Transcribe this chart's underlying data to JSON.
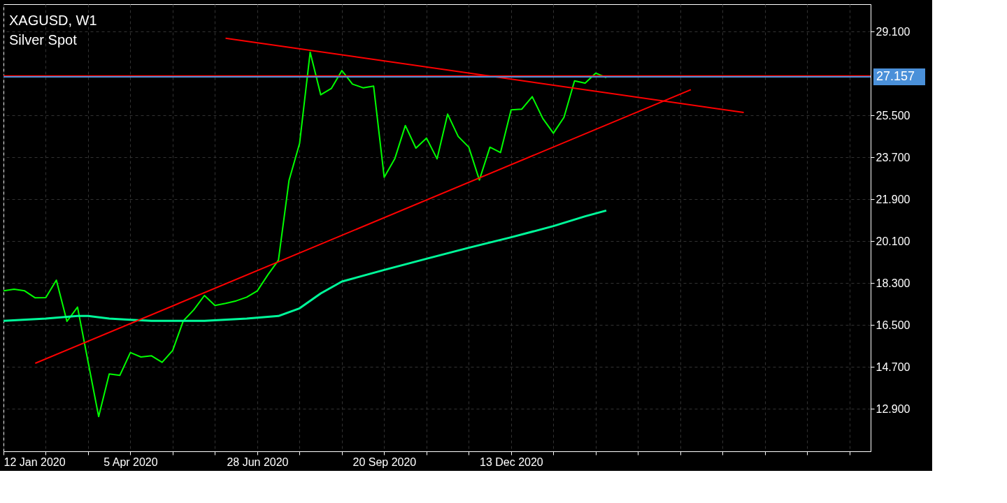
{
  "chart_data": {
    "type": "line",
    "title": "XAGUSD, W1",
    "subtitle": "Silver Spot",
    "series": [
      {
        "color": "#00ff00",
        "x": [
          "2020-01-12",
          "2020-01-19",
          "2020-01-26",
          "2020-02-02",
          "2020-02-09",
          "2020-02-16",
          "2020-02-23",
          "2020-03-01",
          "2020-03-08",
          "2020-03-15",
          "2020-03-22",
          "2020-03-29",
          "2020-04-05",
          "2020-04-12",
          "2020-04-19",
          "2020-04-26",
          "2020-05-03",
          "2020-05-10",
          "2020-05-17",
          "2020-05-24",
          "2020-05-31",
          "2020-06-07",
          "2020-06-14",
          "2020-06-21",
          "2020-06-28",
          "2020-07-05",
          "2020-07-12",
          "2020-07-19",
          "2020-07-26",
          "2020-08-02",
          "2020-08-09",
          "2020-08-16",
          "2020-08-23",
          "2020-08-30",
          "2020-09-06",
          "2020-09-13",
          "2020-09-20",
          "2020-09-27",
          "2020-10-04",
          "2020-10-11",
          "2020-10-18",
          "2020-10-25",
          "2020-11-01",
          "2020-11-08",
          "2020-11-15",
          "2020-11-22",
          "2020-11-29",
          "2020-12-06",
          "2020-12-13",
          "2020-12-20",
          "2020-12-27",
          "2021-01-03",
          "2021-01-10",
          "2021-01-17",
          "2021-01-24",
          "2021-01-31",
          "2021-02-07",
          "2021-02-14"
        ],
        "values": [
          17.97,
          18.04,
          17.97,
          17.67,
          17.68,
          18.43,
          16.66,
          17.27,
          14.92,
          12.57,
          14.4,
          14.34,
          15.32,
          15.13,
          15.18,
          14.9,
          15.41,
          16.68,
          17.16,
          17.77,
          17.34,
          17.43,
          17.54,
          17.7,
          17.97,
          18.66,
          19.29,
          22.71,
          24.3,
          28.22,
          26.39,
          26.66,
          27.43,
          26.85,
          26.69,
          26.76,
          22.85,
          23.64,
          25.07,
          24.1,
          24.53,
          23.64,
          25.56,
          24.6,
          24.14,
          22.73,
          24.14,
          23.91,
          25.74,
          25.77,
          26.31,
          25.37,
          24.74,
          25.42,
          26.99,
          26.89,
          27.32,
          27.13
        ]
      },
      {
        "color": "#00fa9a",
        "x": [
          "2020-01-12",
          "2020-02-09",
          "2020-03-01",
          "2020-03-08",
          "2020-03-22",
          "2020-04-05",
          "2020-04-19",
          "2020-05-24",
          "2020-06-21",
          "2020-07-12",
          "2020-07-26",
          "2020-08-09",
          "2020-08-23",
          "2020-09-20",
          "2020-10-18",
          "2020-11-15",
          "2020-12-13",
          "2021-01-10",
          "2021-01-31",
          "2021-02-14"
        ],
        "values": [
          16.68,
          16.78,
          16.89,
          16.89,
          16.78,
          16.73,
          16.68,
          16.68,
          16.78,
          16.89,
          17.22,
          17.86,
          18.37,
          18.87,
          19.35,
          19.82,
          20.27,
          20.75,
          21.17,
          21.42
        ]
      },
      {
        "color": "#ff0000",
        "x": [
          "2020-02-02",
          "2021-04-11"
        ],
        "values": [
          14.86,
          26.61
        ]
      },
      {
        "color": "#ff0000",
        "x": [
          "2020-06-07",
          "2021-05-16"
        ],
        "values": [
          28.82,
          25.63
        ]
      }
    ],
    "ref_lines": [
      {
        "axis": "y",
        "value": 27.2,
        "label": null,
        "color": "#ff0000"
      },
      {
        "axis": "y",
        "value": 27.157,
        "label": "27.157",
        "color": "#4a90d9"
      }
    ],
    "xlim": [
      "2020-01-12",
      "2021-08-08"
    ],
    "xticks": [
      {
        "value": "2020-01-12",
        "label": "12 Jan 2020"
      },
      {
        "value": "2020-02-09",
        "label": null
      },
      {
        "value": "2020-03-08",
        "label": null
      },
      {
        "value": "2020-04-05",
        "label": "5 Apr 2020"
      },
      {
        "value": "2020-05-03",
        "label": null
      },
      {
        "value": "2020-05-31",
        "label": null
      },
      {
        "value": "2020-06-28",
        "label": "28 Jun 2020"
      },
      {
        "value": "2020-07-26",
        "label": null
      },
      {
        "value": "2020-08-23",
        "label": null
      },
      {
        "value": "2020-09-20",
        "label": "20 Sep 2020"
      },
      {
        "value": "2020-10-18",
        "label": null
      },
      {
        "value": "2020-11-15",
        "label": null
      },
      {
        "value": "2020-12-13",
        "label": "13 Dec 2020"
      },
      {
        "value": "2021-01-10",
        "label": null
      },
      {
        "value": "2021-02-07",
        "label": null
      },
      {
        "value": "2021-03-07",
        "label": null
      },
      {
        "value": "2021-04-04",
        "label": null
      },
      {
        "value": "2021-05-02",
        "label": null
      },
      {
        "value": "2021-05-30",
        "label": null
      },
      {
        "value": "2021-06-27",
        "label": null
      },
      {
        "value": "2021-07-25",
        "label": null
      }
    ],
    "ylim": [
      11.08,
      30.28
    ],
    "yticks": [
      {
        "value": 12.9,
        "label": "12.900"
      },
      {
        "value": 14.7,
        "label": "14.700"
      },
      {
        "value": 16.5,
        "label": "16.500"
      },
      {
        "value": 18.3,
        "label": "18.300"
      },
      {
        "value": 20.1,
        "label": "20.100"
      },
      {
        "value": 21.9,
        "label": "21.900"
      },
      {
        "value": 23.7,
        "label": "23.700"
      },
      {
        "value": 25.5,
        "label": "25.500"
      },
      {
        "value": 29.1,
        "label": "29.100"
      }
    ],
    "grid": true,
    "line_style": "solid",
    "marker": "none"
  }
}
